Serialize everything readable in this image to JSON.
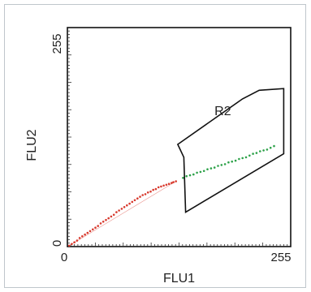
{
  "chart_data": {
    "type": "scatter",
    "xlabel": "FLU1",
    "ylabel": "FLU2",
    "xlim": [
      0,
      255
    ],
    "ylim": [
      0,
      255
    ],
    "x_tick_labels": [
      "0",
      "255"
    ],
    "y_tick_labels": [
      "0",
      "255"
    ],
    "grid": false,
    "series": [
      {
        "color": "#d83a2e",
        "points": [
          [
            2,
            1
          ],
          [
            5,
            3
          ],
          [
            8,
            5
          ],
          [
            11,
            7
          ],
          [
            14,
            10
          ],
          [
            17,
            12
          ],
          [
            20,
            14
          ],
          [
            23,
            16
          ],
          [
            26,
            18
          ],
          [
            29,
            20
          ],
          [
            32,
            22
          ],
          [
            35,
            24
          ],
          [
            38,
            27
          ],
          [
            41,
            29
          ],
          [
            44,
            31
          ],
          [
            47,
            33
          ],
          [
            50,
            35
          ],
          [
            53,
            37
          ],
          [
            56,
            40
          ],
          [
            59,
            42
          ],
          [
            62,
            44
          ],
          [
            65,
            46
          ],
          [
            68,
            48
          ],
          [
            71,
            50
          ],
          [
            74,
            52
          ],
          [
            77,
            54
          ],
          [
            80,
            56
          ],
          [
            83,
            58
          ],
          [
            86,
            60
          ],
          [
            89,
            61
          ],
          [
            92,
            63
          ],
          [
            95,
            64
          ],
          [
            98,
            66
          ],
          [
            101,
            67
          ],
          [
            104,
            69
          ],
          [
            107,
            70
          ],
          [
            110,
            71
          ],
          [
            113,
            72
          ],
          [
            116,
            73
          ],
          [
            119,
            74
          ],
          [
            121,
            75
          ],
          [
            124,
            76
          ]
        ]
      },
      {
        "color": "#2ea24a",
        "points": [
          [
            132,
            80
          ],
          [
            136,
            82
          ],
          [
            140,
            83
          ],
          [
            144,
            84
          ],
          [
            148,
            86
          ],
          [
            152,
            87
          ],
          [
            156,
            88
          ],
          [
            160,
            90
          ],
          [
            164,
            91
          ],
          [
            168,
            92
          ],
          [
            172,
            94
          ],
          [
            176,
            95
          ],
          [
            180,
            96
          ],
          [
            184,
            98
          ],
          [
            188,
            99
          ],
          [
            192,
            100
          ],
          [
            196,
            102
          ],
          [
            200,
            103
          ],
          [
            204,
            104
          ],
          [
            208,
            106
          ],
          [
            212,
            108
          ],
          [
            216,
            109
          ],
          [
            220,
            111
          ],
          [
            224,
            112
          ],
          [
            228,
            113
          ],
          [
            232,
            115
          ],
          [
            236,
            117
          ]
        ]
      }
    ],
    "regions": [
      {
        "name": "R2",
        "vertices": [
          [
            126,
            119
          ],
          [
            200,
            172
          ],
          [
            219,
            182
          ],
          [
            247,
            184
          ],
          [
            247,
            108
          ],
          [
            135,
            40
          ],
          [
            133,
            104
          ]
        ],
        "label_pos": [
          168,
          153
        ]
      }
    ]
  }
}
